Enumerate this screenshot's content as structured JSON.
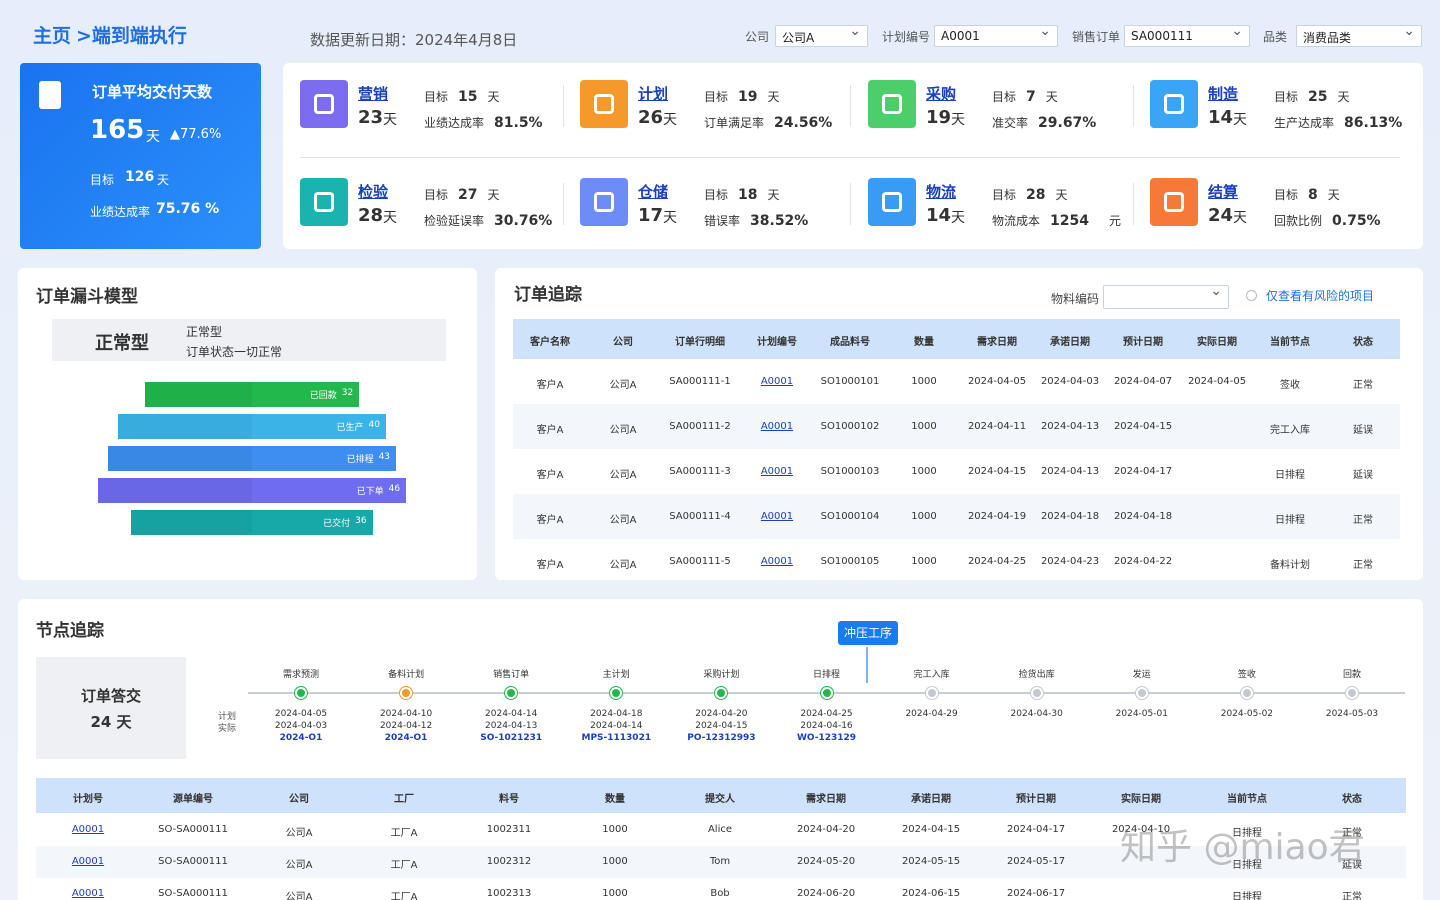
{
  "header": {
    "home": "主页",
    "breadcrumb": ">端到端执行",
    "update_date": "数据更新日期：2024年4月8日",
    "filters": [
      {
        "label": "公司",
        "value": "公司A"
      },
      {
        "label": "计划编号",
        "value": "A0001"
      },
      {
        "label": "销售订单",
        "value": "SA000111"
      },
      {
        "label": "品类",
        "value": "消费品类"
      }
    ]
  },
  "summary": {
    "title": "订单平均交付天数",
    "value": "165",
    "unit": "天",
    "change": "▲77.6%",
    "target_label": "目标",
    "target": "126",
    "target_unit": "天",
    "rate_label": "业绩达成率",
    "rate": "75.76 %"
  },
  "kpis": [
    {
      "name": "营销",
      "days": "23",
      "unit": "天",
      "target_label": "目标",
      "target": "15",
      "target_unit": "天",
      "metric_label": "业绩达成率",
      "metric_value": "81.5%",
      "color": "#7b6cf0"
    },
    {
      "name": "计划",
      "days": "26",
      "unit": "天",
      "target_label": "目标",
      "target": "19",
      "target_unit": "天",
      "metric_label": "订单满足率",
      "metric_value": "24.56%",
      "color": "#f59a2a"
    },
    {
      "name": "采购",
      "days": "19",
      "unit": "天",
      "target_label": "目标",
      "target": "7",
      "target_unit": "天",
      "metric_label": "准交率",
      "metric_value": "29.67%",
      "color": "#4ccf6a"
    },
    {
      "name": "制造",
      "days": "14",
      "unit": "天",
      "target_label": "目标",
      "target": "25",
      "target_unit": "天",
      "metric_label": "生产达成率",
      "metric_value": "86.13%",
      "color": "#3aa5f5"
    },
    {
      "name": "检验",
      "days": "28",
      "unit": "天",
      "target_label": "目标",
      "target": "27",
      "target_unit": "天",
      "metric_label": "检验延误率",
      "metric_value": "30.76%",
      "color": "#1ab3b0"
    },
    {
      "name": "仓储",
      "days": "17",
      "unit": "天",
      "target_label": "目标",
      "target": "18",
      "target_unit": "天",
      "metric_label": "错误率",
      "metric_value": "38.52%",
      "color": "#6d8cf5"
    },
    {
      "name": "物流",
      "days": "14",
      "unit": "天",
      "target_label": "目标",
      "target": "28",
      "target_unit": "天",
      "metric_label": "物流成本",
      "metric_value": "1254",
      "metric_unit": "元",
      "color": "#3a9bf5"
    },
    {
      "name": "结算",
      "days": "24",
      "unit": "天",
      "target_label": "目标",
      "target": "8",
      "target_unit": "天",
      "metric_label": "回款比例",
      "metric_value": "0.75%",
      "color": "#f57a3a"
    }
  ],
  "funnel": {
    "title": "订单漏斗模型",
    "status_type": "正常型",
    "status_name": "正常型",
    "status_desc": "订单状态一切正常",
    "stages": [
      {
        "label": "已回款",
        "value": 32,
        "color": "#22b84c"
      },
      {
        "label": "已生产",
        "value": 40,
        "color": "#3bb3e6"
      },
      {
        "label": "已排程",
        "value": 43,
        "color": "#3d8ef0"
      },
      {
        "label": "已下单",
        "value": 46,
        "color": "#6f6cf0"
      },
      {
        "label": "已交付",
        "value": 36,
        "color": "#16a9a8"
      }
    ]
  },
  "order_tracking": {
    "title": "订单追踪",
    "material_label": "物料编码",
    "risk_label": "仅查看有风险的项目",
    "columns": [
      "客户名称",
      "公司",
      "订单行明细",
      "计划编号",
      "成品料号",
      "数量",
      "需求日期",
      "承诺日期",
      "预计日期",
      "实际日期",
      "当前节点",
      "状态"
    ],
    "rows": [
      [
        "客户A",
        "公司A",
        "SA000111-1",
        "A0001",
        "SO1000101",
        "1000",
        "2024-04-05",
        "2024-04-03",
        "2024-04-07",
        "2024-04-05",
        "签收",
        "正常"
      ],
      [
        "客户A",
        "公司A",
        "SA000111-2",
        "A0001",
        "SO1000102",
        "1000",
        "2024-04-11",
        "2024-04-13",
        "2024-04-15",
        null,
        "完工入库",
        "延误"
      ],
      [
        "客户A",
        "公司A",
        "SA000111-3",
        "A0001",
        "SO1000103",
        "1000",
        "2024-04-15",
        "2024-04-13",
        "2024-04-17",
        null,
        "日排程",
        "延误"
      ],
      [
        "客户A",
        "公司A",
        "SA000111-4",
        "A0001",
        "SO1000104",
        "1000",
        "2024-04-19",
        "2024-04-18",
        "2024-04-18",
        null,
        "日排程",
        "正常"
      ],
      [
        "客户A",
        "公司A",
        "SA000111-5",
        "A0001",
        "SO1000105",
        "1000",
        "2024-04-25",
        "2024-04-23",
        "2024-04-22",
        null,
        "备料计划",
        "正常"
      ]
    ]
  },
  "node_tracking": {
    "title": "节点追踪",
    "summary_label": "订单答交",
    "summary_value": "24 天",
    "current_tag": "冲压工序",
    "legend_plan": "计划",
    "legend_actual": "实际",
    "nodes": [
      {
        "name": "需求预测",
        "plan": "2024-04-05",
        "actual": "2024-04-03",
        "code": "2024-O1",
        "color": "#22b84c"
      },
      {
        "name": "备料计划",
        "plan": "2024-04-10",
        "actual": "2024-04-12",
        "code": "2024-O1",
        "color": "#f59a2a"
      },
      {
        "name": "销售订单",
        "plan": "2024-04-14",
        "actual": "2024-04-13",
        "code": "SO-1021231",
        "color": "#22b84c"
      },
      {
        "name": "主计划",
        "plan": "2024-04-18",
        "actual": "2024-04-14",
        "code": "MPS-1113021",
        "color": "#22b84c"
      },
      {
        "name": "采购计划",
        "plan": "2024-04-20",
        "actual": "2024-04-15",
        "code": "PO-12312993",
        "color": "#22b84c"
      },
      {
        "name": "日排程",
        "plan": "2024-04-25",
        "actual": "2024-04-16",
        "code": "WO-123129",
        "color": "#22b84c"
      },
      {
        "name": "完工入库",
        "plan": "2024-04-29",
        "color": "#c4c8cf"
      },
      {
        "name": "捡货出库",
        "plan": "2024-04-30",
        "color": "#c4c8cf"
      },
      {
        "name": "发运",
        "plan": "2024-05-01",
        "color": "#c4c8cf"
      },
      {
        "name": "签收",
        "plan": "2024-05-02",
        "color": "#c4c8cf"
      },
      {
        "name": "回款",
        "plan": "2024-05-03",
        "color": "#c4c8cf"
      }
    ]
  },
  "plan_table": {
    "columns": [
      "计划号",
      "源单编号",
      "公司",
      "工厂",
      "料号",
      "数量",
      "提交人",
      "需求日期",
      "承诺日期",
      "预计日期",
      "实际日期",
      "当前节点",
      "状态"
    ],
    "rows": [
      [
        "A0001",
        "SO-SA000111",
        "公司A",
        "工厂A",
        "1002311",
        "1000",
        "Alice",
        "2024-04-20",
        "2024-04-15",
        "2024-04-17",
        "2024-04-10",
        "日排程",
        "正常"
      ],
      [
        "A0001",
        "SO-SA000111",
        "公司A",
        "工厂A",
        "1002312",
        "1000",
        "Tom",
        "2024-05-20",
        "2024-05-15",
        "2024-05-17",
        null,
        "日排程",
        "延误"
      ],
      [
        "A0001",
        "SO-SA000111",
        "公司A",
        "工厂A",
        "1002313",
        "1000",
        "Bob",
        "2024-06-20",
        "2024-06-15",
        "2024-06-17",
        null,
        "日排程",
        "正常"
      ]
    ]
  },
  "watermark": "知乎 @miao君"
}
